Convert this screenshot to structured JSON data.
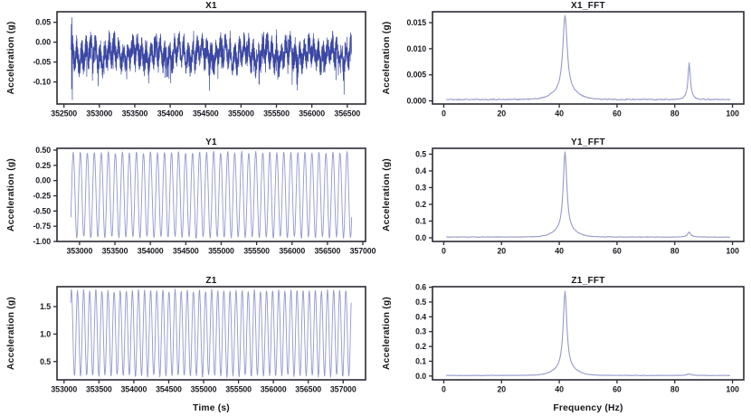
{
  "figure": {
    "background": "#ffffff",
    "frame_color": "#2b2b35",
    "text_color": "#1b1b22",
    "panels_order": [
      "X1",
      "X1_FFT",
      "Y1",
      "Y1_FFT",
      "Z1",
      "Z1_FFT"
    ]
  },
  "chart_data": [
    {
      "panel": "X1",
      "type": "line",
      "title": "X1",
      "ylabel": "Acceleration (g)",
      "xlabel": "",
      "xlim": [
        352402,
        356758
      ],
      "ylim": [
        -0.1555,
        0.0765
      ],
      "xticks": {
        "values": [
          352500,
          353000,
          353500,
          354000,
          354500,
          355000,
          355500,
          356000,
          356500
        ],
        "labels": [
          "352500",
          "353000",
          "353500",
          "354000",
          "354500",
          "355000",
          "355500",
          "356000",
          "356500"
        ]
      },
      "yticks": {
        "values": [
          0.05,
          0.0,
          -0.05,
          -0.1
        ],
        "labels": [
          "0.05",
          "0.00",
          "-0.05",
          "-0.10"
        ]
      },
      "line_color": "#3a47a3",
      "line_width": 0.7,
      "signal": {
        "kind": "noisy",
        "seed": 11,
        "t_start": 352600,
        "t_end": 356560,
        "n": 2600,
        "mean": -0.03,
        "value_min": -0.145,
        "value_max": 0.066,
        "onset_spikes": [
          [
            3,
            0.045
          ],
          [
            5,
            -0.118
          ],
          [
            8,
            0.062
          ],
          [
            12,
            -0.145
          ]
        ]
      }
    },
    {
      "panel": "X1_FFT",
      "type": "line",
      "title": "X1_FFT",
      "ylabel": "Acceleration (g)",
      "xlabel": "",
      "xlim": [
        -3.9,
        103.9
      ],
      "ylim": [
        -0.0006,
        0.0171
      ],
      "xticks": {
        "values": [
          0,
          20,
          40,
          60,
          80,
          100
        ],
        "labels": [
          "0",
          "20",
          "40",
          "60",
          "80",
          "100"
        ]
      },
      "yticks": {
        "values": [
          0.0,
          0.005,
          0.01,
          0.015
        ],
        "labels": [
          "0.000",
          "0.005",
          "0.010",
          "0.015"
        ]
      },
      "line_color": "#9599cb",
      "line_width": 1.1,
      "signal": {
        "kind": "fft",
        "seed": 21,
        "f_start": 1,
        "f_end": 99,
        "step": 0.25,
        "base": 0.00025,
        "pedestals": [
          {
            "center": 42,
            "amp": 0.0014,
            "sigma": 5.5
          },
          {
            "center": 85,
            "amp": 0.0007,
            "sigma": 1.6
          }
        ],
        "peaks": [
          {
            "freq_hz": 42,
            "amplitude": 0.0148,
            "width": 0.9
          },
          {
            "freq_hz": 85,
            "amplitude": 0.0063,
            "width": 0.45
          }
        ]
      }
    },
    {
      "panel": "Y1",
      "type": "line",
      "title": "Y1",
      "ylabel": "Acceleration (g)",
      "xlabel": "",
      "xlim": [
        352682,
        357038
      ],
      "ylim": [
        -1.0,
        0.53
      ],
      "xticks": {
        "values": [
          353000,
          353500,
          354000,
          354500,
          355000,
          355500,
          356000,
          356500,
          357000
        ],
        "labels": [
          "353000",
          "353500",
          "354000",
          "354500",
          "355000",
          "355500",
          "356000",
          "356500",
          "357000"
        ]
      },
      "yticks": {
        "values": [
          0.5,
          0.25,
          0.0,
          -0.25,
          -0.5,
          -0.75,
          -1.0
        ],
        "labels": [
          "0.50",
          "0.25",
          "0.00",
          "-0.25",
          "-0.50",
          "-0.75",
          "-1.00"
        ]
      },
      "line_color": "#9397cd",
      "line_width": 0.9,
      "signal": {
        "kind": "sine",
        "seed": 5,
        "t_start": 352878,
        "t_end": 356842,
        "cycles": 40,
        "offset": -0.235,
        "amp": 0.695,
        "phase0": -0.555,
        "points_per_cycle": 26,
        "noise": 0.012
      }
    },
    {
      "panel": "Y1_FFT",
      "type": "line",
      "title": "Y1_FFT",
      "ylabel": "Acceleration (g)",
      "xlabel": "",
      "xlim": [
        -3.9,
        103.9
      ],
      "ylim": [
        -0.022,
        0.535
      ],
      "xticks": {
        "values": [
          0,
          20,
          40,
          60,
          80,
          100
        ],
        "labels": [
          "0",
          "20",
          "40",
          "60",
          "80",
          "100"
        ]
      },
      "yticks": {
        "values": [
          0.0,
          0.1,
          0.2,
          0.3,
          0.4,
          0.5
        ],
        "labels": [
          "0.0",
          "0.1",
          "0.2",
          "0.3",
          "0.4",
          "0.5"
        ]
      },
      "line_color": "#9599cb",
      "line_width": 1.1,
      "signal": {
        "kind": "fft",
        "seed": 31,
        "f_start": 1,
        "f_end": 99,
        "step": 0.25,
        "base": 0.004,
        "pedestals": [
          {
            "center": 42,
            "amp": 0.035,
            "sigma": 5.0
          },
          {
            "center": 85,
            "amp": 0.004,
            "sigma": 2.0
          }
        ],
        "peaks": [
          {
            "freq_hz": 42,
            "amplitude": 0.475,
            "width": 0.75
          },
          {
            "freq_hz": 85,
            "amplitude": 0.025,
            "width": 0.6
          }
        ]
      }
    },
    {
      "panel": "Z1",
      "type": "line",
      "title": "Z1",
      "ylabel": "Acceleration (g)",
      "xlabel": "Time (s)",
      "xlim": [
        352899,
        357321
      ],
      "ylim": [
        0.168,
        1.862
      ],
      "xticks": {
        "values": [
          353000,
          353500,
          354000,
          354500,
          355000,
          355500,
          356000,
          356500,
          357000
        ],
        "labels": [
          "353000",
          "353500",
          "354000",
          "354500",
          "355000",
          "355500",
          "356000",
          "356500",
          "357000"
        ]
      },
      "yticks": {
        "values": [
          1.5,
          1.0,
          0.5
        ],
        "labels": [
          "1.5",
          "1.0",
          "0.5"
        ]
      },
      "line_color": "#9397cd",
      "line_width": 0.9,
      "signal": {
        "kind": "sine",
        "seed": 9,
        "t_start": 353095,
        "t_end": 357115,
        "cycles": 46,
        "offset": 1.015,
        "amp": 0.77,
        "phase0": 0.8,
        "points_per_cycle": 26,
        "noise": 0.02
      }
    },
    {
      "panel": "Z1_FFT",
      "type": "line",
      "title": "Z1_FFT",
      "ylabel": "Acceleration (g)",
      "xlabel": "Frequency (Hz)",
      "xlim": [
        -3.9,
        103.9
      ],
      "ylim": [
        -0.0256,
        0.6036
      ],
      "xticks": {
        "values": [
          0,
          20,
          40,
          60,
          80,
          100
        ],
        "labels": [
          "0",
          "20",
          "40",
          "60",
          "80",
          "100"
        ]
      },
      "yticks": {
        "values": [
          0.0,
          0.1,
          0.2,
          0.3,
          0.4,
          0.5,
          0.6
        ],
        "labels": [
          "0.0",
          "0.1",
          "0.2",
          "0.3",
          "0.4",
          "0.5",
          "0.6"
        ]
      },
      "line_color": "#9599cb",
      "line_width": 1.1,
      "signal": {
        "kind": "fft",
        "seed": 41,
        "f_start": 1,
        "f_end": 99,
        "step": 0.25,
        "base": 0.0035,
        "pedestals": [
          {
            "center": 42,
            "amp": 0.042,
            "sigma": 5.0
          },
          {
            "center": 85,
            "amp": 0.003,
            "sigma": 2.0
          }
        ],
        "peaks": [
          {
            "freq_hz": 42,
            "amplitude": 0.528,
            "width": 0.75
          },
          {
            "freq_hz": 85,
            "amplitude": 0.008,
            "width": 0.7
          }
        ]
      }
    }
  ]
}
